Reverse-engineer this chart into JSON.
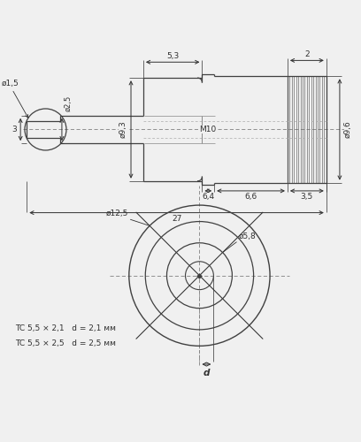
{
  "bg_color": "#f0f0f0",
  "line_color": "#404040",
  "dim_color": "#303030",
  "center_color": "#808080",
  "annotations": {
    "d1_5": "ø1,5",
    "d2_5": "ø2,5",
    "d9_3": "ø9,3",
    "d9_6": "ø9,6",
    "M10": "M10",
    "dim_5_3": "5,3",
    "dim_6_4": "6,4",
    "dim_6_6": "6,6",
    "dim_3_5": "3,5",
    "dim_27": "27",
    "dim_2": "2",
    "dim_3": "3",
    "d12_5": "ø12,5",
    "d5_8": "ø5,8",
    "d_label": "d",
    "tc1": "TC 5,5 × 2,1   d = 2,1 мм",
    "tc2": "TC 5,5 × 2,5   d = 2,5 мм"
  }
}
